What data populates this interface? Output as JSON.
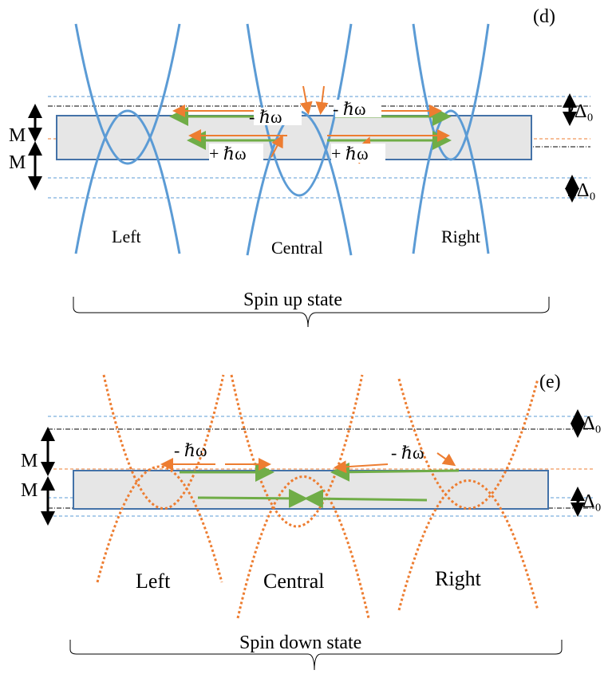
{
  "panels": [
    {
      "id": "d",
      "panel_label": "(d)",
      "band_label_top": "M",
      "band_label_bottom": "M",
      "gap_label_top": "2Δ₀",
      "gap_label_bottom": "2Δ₀",
      "photon_labels": [
        "- ℏω",
        "- ℏω",
        "+ ℏω",
        "+ ℏω"
      ],
      "region_labels": [
        "Left",
        "Central",
        "Right"
      ],
      "state_label": "Spin up state",
      "curve_color": "#5b9bd5"
    },
    {
      "id": "e",
      "panel_label": "(e)",
      "band_label_top": "M",
      "band_label_bottom": "M",
      "gap_label_top": "2Δ₀",
      "gap_label_bottom": "2Δ₀",
      "photon_labels": [
        "- ℏω",
        "- ℏω"
      ],
      "region_labels": [
        "Left",
        "Central",
        "Right"
      ],
      "state_label": "Spin down state",
      "curve_color": "#ed7d31"
    }
  ],
  "colors": {
    "band_fill": "#e6e6e6",
    "band_stroke": "#4472a8",
    "transition_arrow": "#70ad47",
    "photon_arrow": "#ed7d31"
  }
}
